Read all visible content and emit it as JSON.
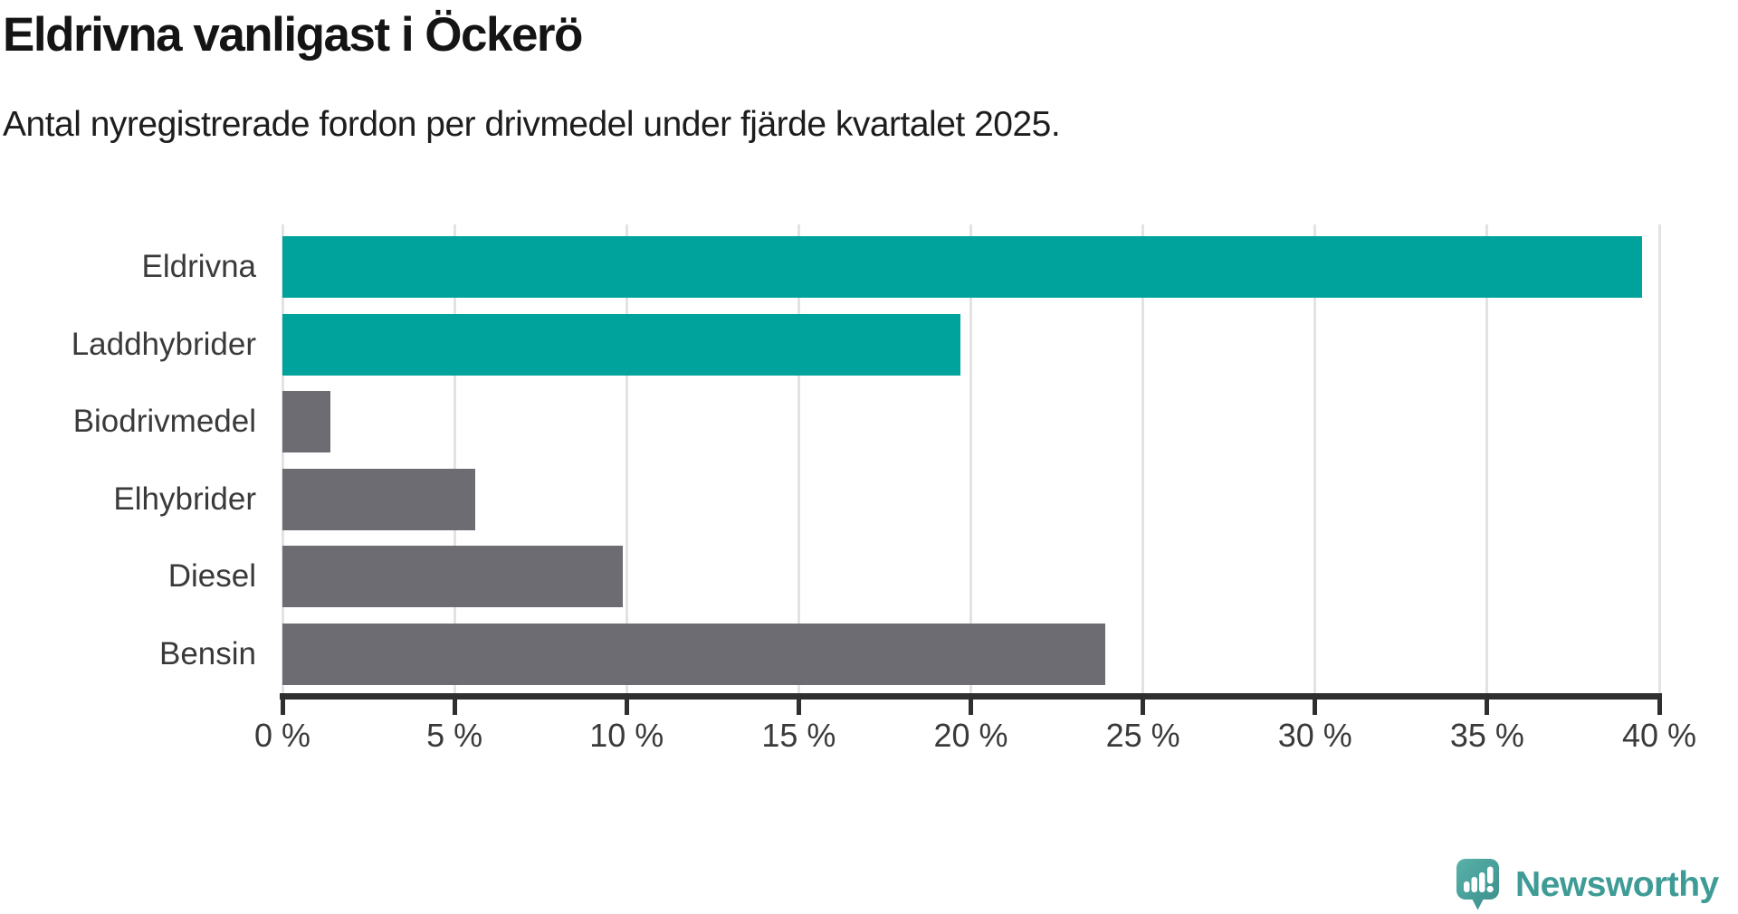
{
  "header": {
    "title": "Eldrivna vanligast i Öckerö",
    "subtitle": "Antal nyregistrerade fordon per drivmedel under fjärde kvartalet 2025."
  },
  "chart_data": {
    "type": "bar",
    "orientation": "horizontal",
    "title": "Eldrivna vanligast i Öckerö",
    "subtitle": "Antal nyregistrerade fordon per drivmedel under fjärde kvartalet 2025.",
    "categories": [
      "Eldrivna",
      "Laddhybrider",
      "Biodrivmedel",
      "Elhybrider",
      "Diesel",
      "Bensin"
    ],
    "values": [
      39.5,
      19.7,
      1.4,
      5.6,
      9.9,
      23.9
    ],
    "unit": "%",
    "xlim": [
      0,
      40
    ],
    "tick_step": 5,
    "x_tick_labels": [
      "0 %",
      "5 %",
      "10 %",
      "15 %",
      "20 %",
      "25 %",
      "30 %",
      "35 %",
      "40 %"
    ],
    "grid": true,
    "legend": "none",
    "highlight_color": "#00a39b",
    "default_color": "#6e6c73",
    "bar_colors": [
      "#00a39b",
      "#00a39b",
      "#6e6c73",
      "#6e6c73",
      "#6e6c73",
      "#6e6c73"
    ]
  },
  "footer": {
    "brand": "Newsworthy",
    "brand_color": "#3f9b96",
    "logo_icon": "newsworthy-speech-bubble-bar-chart-icon"
  }
}
